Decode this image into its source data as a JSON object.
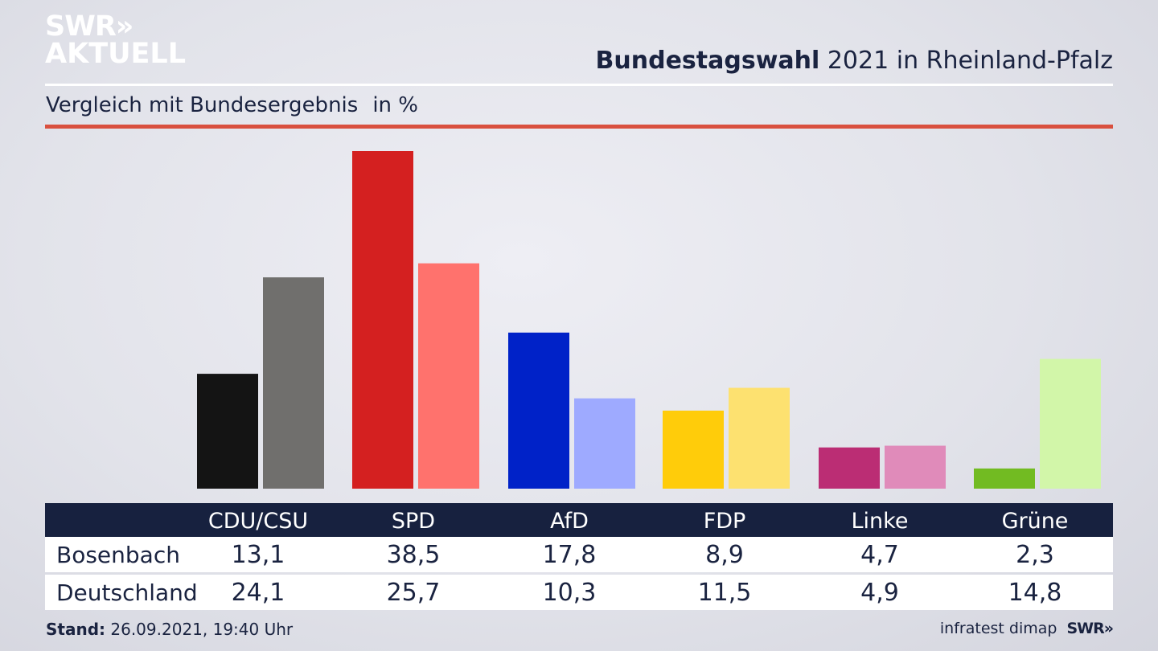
{
  "brand": {
    "logo_line1": "SWR»",
    "logo_line2": "AKTUELL",
    "footer_logo": "SWR»"
  },
  "header": {
    "title_bold": "Bundestagswahl",
    "title_rest": "2021 in Rheinland-Pfalz",
    "subtitle": "Vergleich mit Bundesergebnis",
    "unit": "in %"
  },
  "colors": {
    "navy": "#17213f",
    "accent_red_line": "#d9503f"
  },
  "chart_data": {
    "type": "bar",
    "categories": [
      "CDU/CSU",
      "SPD",
      "AfD",
      "FDP",
      "Linke",
      "Grüne"
    ],
    "series": [
      {
        "name": "Bosenbach",
        "values": [
          13.1,
          38.5,
          17.8,
          8.9,
          4.7,
          2.3
        ],
        "colors": [
          "#141414",
          "#d42020",
          "#0022c8",
          "#ffcc0a",
          "#bb2d74",
          "#72bb22"
        ]
      },
      {
        "name": "Deutschland",
        "values": [
          24.1,
          25.7,
          10.3,
          11.5,
          4.9,
          14.8
        ],
        "colors": [
          "#706f6d",
          "#ff726d",
          "#9eaaff",
          "#fde170",
          "#e08bba",
          "#d2f6a9"
        ]
      }
    ],
    "ylim": [
      0,
      38.5
    ]
  },
  "table": {
    "headers": [
      "CDU/CSU",
      "SPD",
      "AfD",
      "FDP",
      "Linke",
      "Grüne"
    ],
    "rows": [
      {
        "label": "Bosenbach",
        "values": [
          "13,1",
          "38,5",
          "17,8",
          "8,9",
          "4,7",
          "2,3"
        ]
      },
      {
        "label": "Deutschland",
        "values": [
          "24,1",
          "25,7",
          "10,3",
          "11,5",
          "4,9",
          "14,8"
        ]
      }
    ]
  },
  "footer": {
    "stand_label": "Stand:",
    "stand_value": "26.09.2021, 19:40 Uhr",
    "source": "infratest dimap"
  }
}
